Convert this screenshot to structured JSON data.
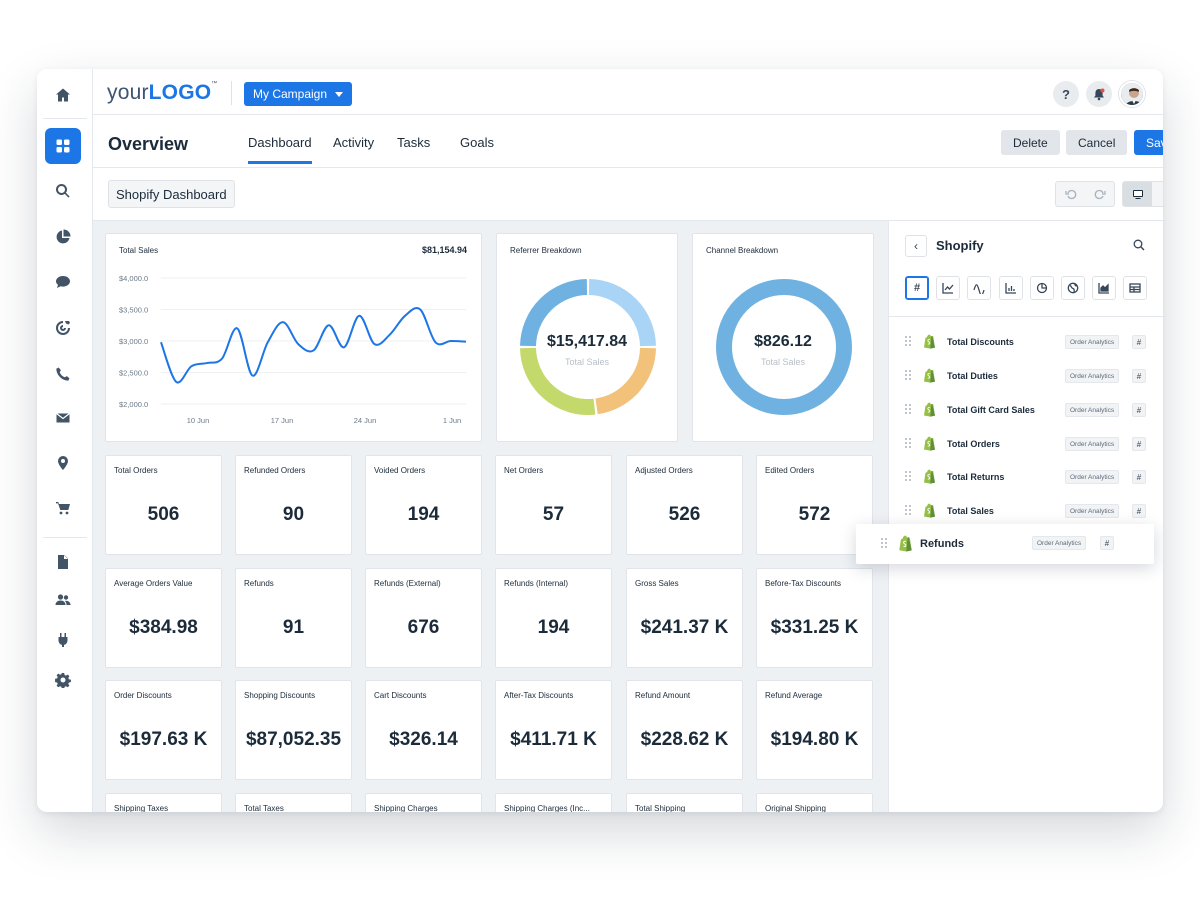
{
  "topbar": {
    "logo_prefix": "your",
    "logo_bold": "LOGO",
    "logo_tm": "™",
    "campaign_label": "My Campaign",
    "help_label": "?"
  },
  "tabbar": {
    "title": "Overview",
    "tabs": [
      "Dashboard",
      "Activity",
      "Tasks",
      "Goals"
    ],
    "active_tab": "Dashboard",
    "delete_label": "Delete",
    "cancel_label": "Cancel",
    "save_label": "Save"
  },
  "toolbar": {
    "dashboard_name": "Shopify Dashboard"
  },
  "total_sales_chart": {
    "title": "Total Sales",
    "total": "$81,154.94",
    "y_ticks": [
      "$4,000.0",
      "$3,500.0",
      "$3,000.0",
      "$2,500.0",
      "$2,000.0"
    ],
    "x_ticks": [
      "10 Jun",
      "17 Jun",
      "24 Jun",
      "1 Jun"
    ]
  },
  "referrer_chart": {
    "title": "Referrer Breakdown",
    "value": "$15,417.84",
    "sub": "Total Sales"
  },
  "channel_chart": {
    "title": "Channel Breakdown",
    "value": "$826.12",
    "sub": "Total Sales"
  },
  "chart_data": [
    {
      "type": "line",
      "title": "Total Sales",
      "ylim": [
        2000,
        4000
      ],
      "x_tick_labels": [
        "10 Jun",
        "17 Jun",
        "24 Jun",
        "1 Jun"
      ],
      "series": [
        {
          "values": [
            2980,
            2350,
            2600,
            2650,
            2720,
            3200,
            2450,
            2980,
            3300,
            2950,
            2850,
            3250,
            2900,
            3400,
            2950,
            3100,
            3400,
            3500,
            2980,
            3000,
            2990
          ]
        }
      ],
      "color": "#1d76e5",
      "grid": true
    },
    {
      "type": "pie",
      "title": "Referrer Breakdown",
      "donut": true,
      "slices": [
        {
          "value": 25,
          "color": "#a9d4f5"
        },
        {
          "value": 23,
          "color": "#f2c27a"
        },
        {
          "value": 27,
          "color": "#c4d96b"
        },
        {
          "value": 25,
          "color": "#6fb2e2"
        }
      ]
    },
    {
      "type": "pie",
      "title": "Channel Breakdown",
      "donut": true,
      "slices": [
        {
          "value": 100,
          "color": "#6fb2e2"
        }
      ]
    }
  ],
  "kpis": [
    {
      "title": "Total Orders",
      "value": "506"
    },
    {
      "title": "Refunded Orders",
      "value": "90"
    },
    {
      "title": "Voided Orders",
      "value": "194"
    },
    {
      "title": "Net Orders",
      "value": "57"
    },
    {
      "title": "Adjusted Orders",
      "value": "526"
    },
    {
      "title": "Edited Orders",
      "value": "572"
    },
    {
      "title": "Average Orders Value",
      "value": "$384.98"
    },
    {
      "title": "Refunds",
      "value": "91"
    },
    {
      "title": "Refunds (External)",
      "value": "676"
    },
    {
      "title": "Refunds (Internal)",
      "value": "194"
    },
    {
      "title": "Gross Sales",
      "value": "$241.37 K"
    },
    {
      "title": "Before-Tax Discounts",
      "value": "$331.25 K"
    },
    {
      "title": "Order Discounts",
      "value": "$197.63 K"
    },
    {
      "title": "Shopping Discounts",
      "value": "$87,052.35"
    },
    {
      "title": "Cart Discounts",
      "value": "$326.14"
    },
    {
      "title": "After-Tax Discounts",
      "value": "$411.71 K"
    },
    {
      "title": "Refund Amount",
      "value": "$228.62 K"
    },
    {
      "title": "Refund Average",
      "value": "$194.80 K"
    },
    {
      "title": "Shipping Taxes",
      "value": ""
    },
    {
      "title": "Total Taxes",
      "value": ""
    },
    {
      "title": "Shipping Charges",
      "value": ""
    },
    {
      "title": "Shipping Charges (Inc...",
      "value": ""
    },
    {
      "title": "Total Shipping",
      "value": ""
    },
    {
      "title": "Original Shipping",
      "value": ""
    }
  ],
  "panel": {
    "title": "Shopify",
    "back_label": "‹",
    "hash_label": "#",
    "metrics": [
      {
        "name": "Total Discounts",
        "tag": "Order Analytics",
        "hash": "#"
      },
      {
        "name": "Total Duties",
        "tag": "Order Analytics",
        "hash": "#"
      },
      {
        "name": "Total Gift Card Sales",
        "tag": "Order Analytics",
        "hash": "#"
      },
      {
        "name": "Total Orders",
        "tag": "Order Analytics",
        "hash": "#"
      },
      {
        "name": "Total Returns",
        "tag": "Order Analytics",
        "hash": "#"
      },
      {
        "name": "Total Sales",
        "tag": "Order Analytics",
        "hash": "#"
      }
    ],
    "dragging": {
      "name": "Refunds",
      "tag": "Order Analytics",
      "hash": "#"
    }
  },
  "colors": {
    "accent": "#1d76e5",
    "text": "#1c2b3a",
    "canvas_bg": "#eef1f4",
    "shopify_green": "#95bf47"
  }
}
